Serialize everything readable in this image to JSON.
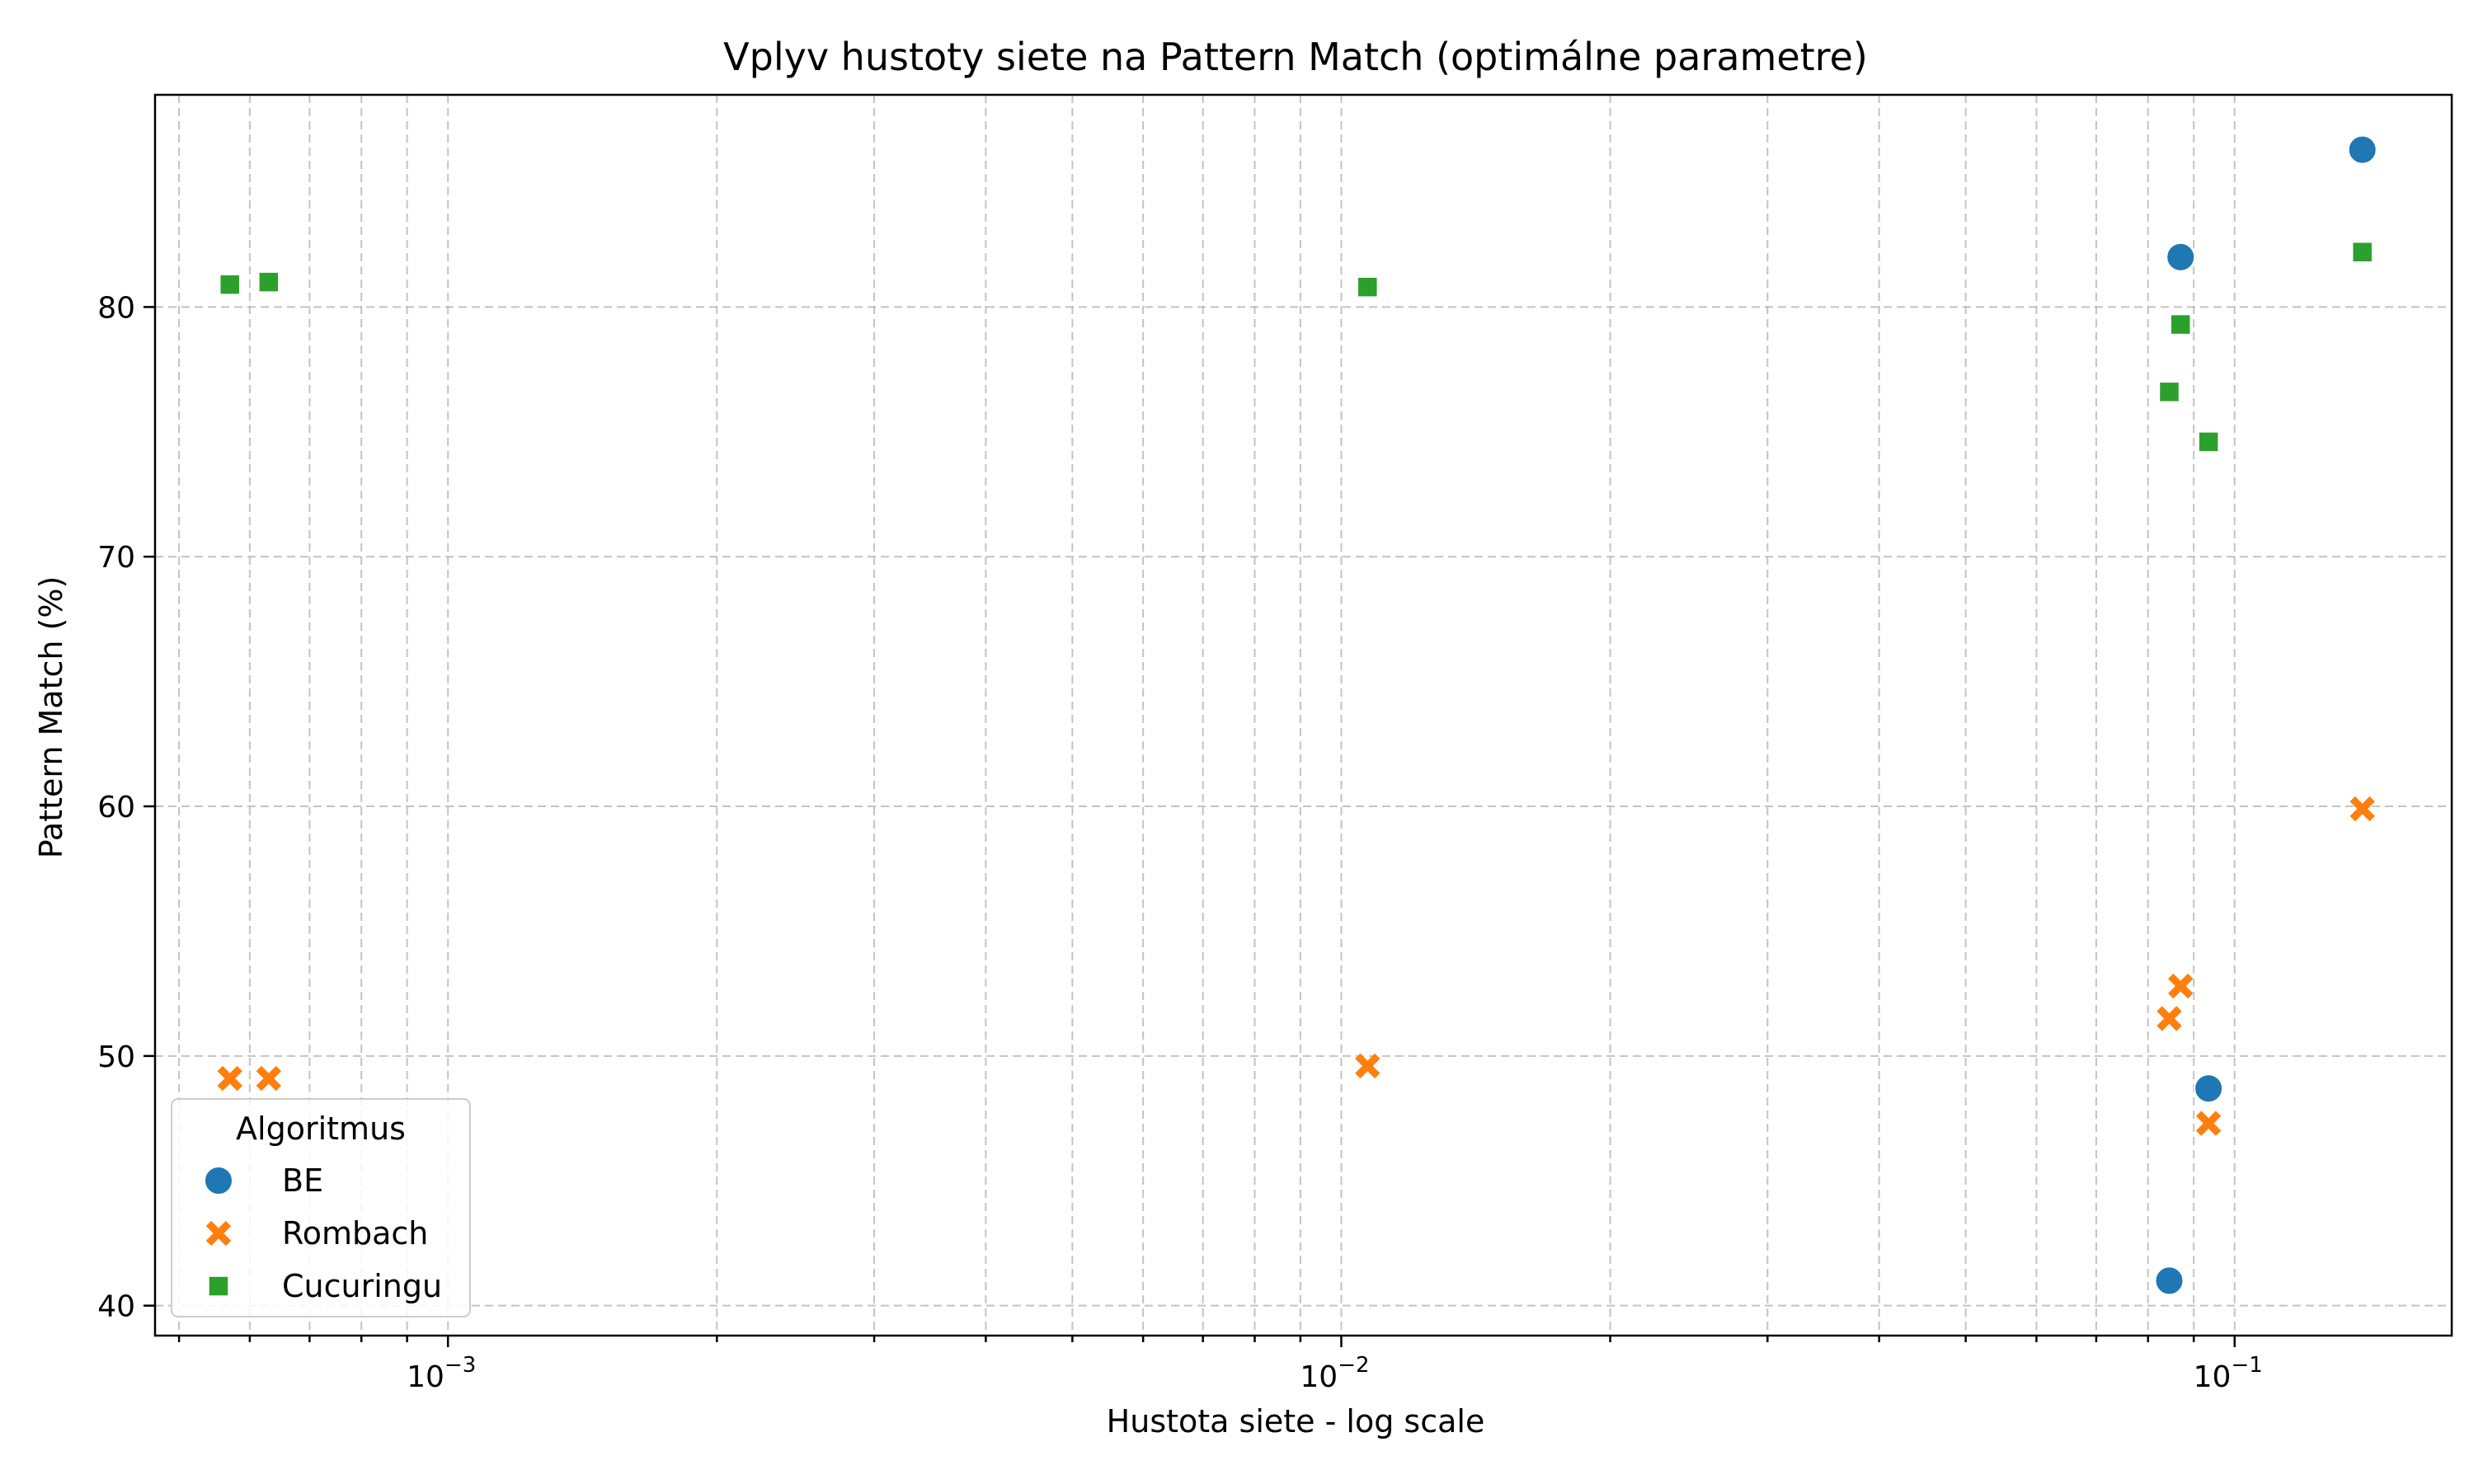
{
  "chart_data": {
    "type": "scatter",
    "title": "Vplyv hustoty siete na Pattern Match (optimálne parametre)",
    "xlabel": "Hustota siete - log scale",
    "ylabel": "Pattern Match (%)",
    "x_scale": "log",
    "xlim": [
      0.00047,
      0.175
    ],
    "ylim": [
      38.8,
      88.5
    ],
    "x_ticks": [
      {
        "value": 0.001,
        "base": "10",
        "exp": "−3"
      },
      {
        "value": 0.01,
        "base": "10",
        "exp": "−2"
      },
      {
        "value": 0.1,
        "base": "10",
        "exp": "−1"
      }
    ],
    "y_ticks": [
      40,
      50,
      60,
      70,
      80
    ],
    "grid": true,
    "legend": {
      "title": "Algoritmus",
      "position": "lower-left"
    },
    "series": [
      {
        "name": "BE",
        "marker": "circle",
        "color": "#1f77b4",
        "points": [
          {
            "x": 0.087,
            "y": 82.0
          },
          {
            "x": 0.139,
            "y": 86.3
          },
          {
            "x": 0.0935,
            "y": 48.7
          },
          {
            "x": 0.0845,
            "y": 41.0
          }
        ]
      },
      {
        "name": "Rombach",
        "marker": "x",
        "color": "#ff7f0e",
        "points": [
          {
            "x": 0.00057,
            "y": 49.1
          },
          {
            "x": 0.00063,
            "y": 49.1
          },
          {
            "x": 0.0107,
            "y": 49.6
          },
          {
            "x": 0.087,
            "y": 52.8
          },
          {
            "x": 0.0845,
            "y": 51.5
          },
          {
            "x": 0.0935,
            "y": 47.3
          },
          {
            "x": 0.139,
            "y": 59.9
          }
        ]
      },
      {
        "name": "Cucuringu",
        "marker": "square",
        "color": "#2ca02c",
        "points": [
          {
            "x": 0.00057,
            "y": 80.9
          },
          {
            "x": 0.00063,
            "y": 81.0
          },
          {
            "x": 0.0107,
            "y": 80.8
          },
          {
            "x": 0.087,
            "y": 79.3
          },
          {
            "x": 0.0845,
            "y": 76.6
          },
          {
            "x": 0.0935,
            "y": 74.6
          },
          {
            "x": 0.139,
            "y": 82.2
          }
        ]
      }
    ]
  }
}
